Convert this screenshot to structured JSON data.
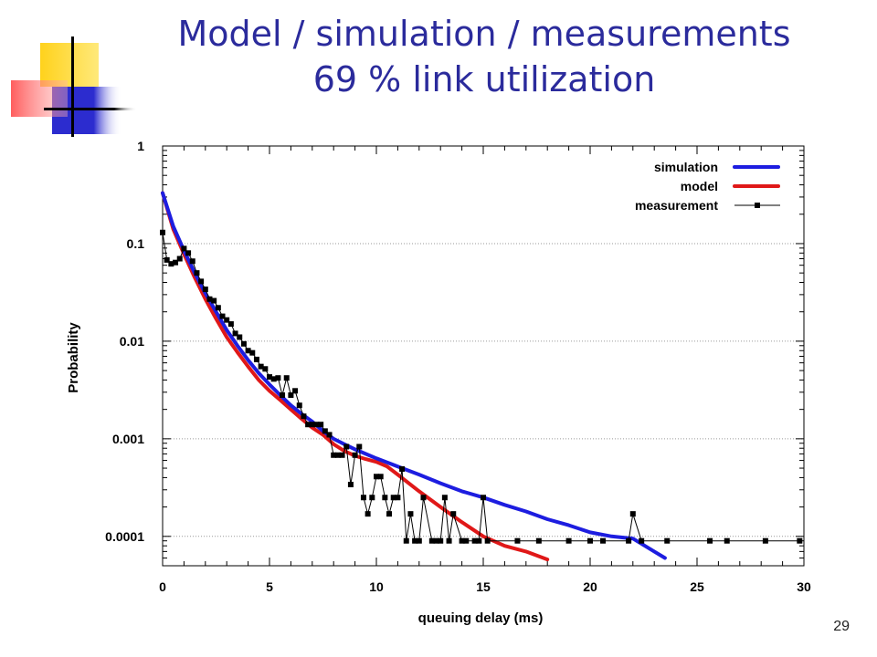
{
  "slide": {
    "title_line1": "Model / simulation / measurements",
    "title_line2": "69 % link utilization",
    "page_number": "29"
  },
  "colors": {
    "title": "#2b2b9c",
    "simulation": "#1d1de0",
    "model": "#e01818",
    "measurement": "#000000",
    "deco_yellow": "#ffd21c",
    "deco_blue": "#2c2ccf",
    "deco_red": "#ff4b4b"
  },
  "chart_data": {
    "type": "line",
    "title": "",
    "xlabel": "queuing delay (ms)",
    "ylabel": "Probability",
    "xlim": [
      0,
      30
    ],
    "ylim": [
      5e-05,
      1
    ],
    "yscale": "log",
    "x_ticks": [
      0,
      5,
      10,
      15,
      20,
      25,
      30
    ],
    "x_tick_labels": [
      "0",
      "5",
      "10",
      "15",
      "20",
      "25",
      "30"
    ],
    "y_ticks": [
      0.0001,
      0.001,
      0.01,
      0.1,
      1
    ],
    "y_tick_labels": [
      "0.0001",
      "0.001",
      "0.01",
      "0.1",
      "1"
    ],
    "grid": true,
    "legend_position": "top-right",
    "series": [
      {
        "name": "simulation",
        "style": "line",
        "x": [
          0,
          0.5,
          1,
          1.5,
          2,
          2.5,
          3,
          3.5,
          4,
          4.5,
          5,
          5.5,
          6,
          6.5,
          7,
          7.5,
          8,
          8.5,
          9,
          9.5,
          10,
          11,
          12,
          13,
          14,
          15,
          16,
          17,
          18,
          19,
          20,
          21,
          22,
          23,
          23.5
        ],
        "y": [
          0.33,
          0.15,
          0.085,
          0.05,
          0.031,
          0.02,
          0.013,
          0.009,
          0.0064,
          0.0047,
          0.0036,
          0.0028,
          0.0022,
          0.0018,
          0.0015,
          0.0012,
          0.001,
          0.00088,
          0.00078,
          0.0007,
          0.00063,
          0.00052,
          0.00043,
          0.00035,
          0.00029,
          0.00025,
          0.00021,
          0.00018,
          0.00015,
          0.00013,
          0.00011,
          0.0001,
          9.5e-05,
          7e-05,
          6e-05
        ]
      },
      {
        "name": "model",
        "style": "line",
        "x": [
          0,
          0.5,
          1,
          1.5,
          2,
          2.5,
          3,
          3.5,
          4,
          4.5,
          5,
          5.5,
          6,
          6.5,
          7,
          7.5,
          8,
          8.5,
          9,
          9.5,
          10,
          10.5,
          11,
          12,
          13,
          14,
          15,
          16,
          17,
          18
        ],
        "y": [
          0.33,
          0.14,
          0.078,
          0.045,
          0.027,
          0.017,
          0.011,
          0.0077,
          0.0055,
          0.004,
          0.0031,
          0.0025,
          0.002,
          0.0016,
          0.0013,
          0.0011,
          0.00088,
          0.00075,
          0.00067,
          0.00062,
          0.00058,
          0.00052,
          0.00043,
          0.00029,
          0.0002,
          0.00014,
          0.0001,
          8e-05,
          7e-05,
          5.8e-05
        ]
      },
      {
        "name": "measurement",
        "style": "line-markers",
        "x": [
          0,
          0.2,
          0.4,
          0.6,
          0.8,
          1.0,
          1.2,
          1.4,
          1.6,
          1.8,
          2.0,
          2.2,
          2.4,
          2.6,
          2.8,
          3.0,
          3.2,
          3.4,
          3.6,
          3.8,
          4.0,
          4.2,
          4.4,
          4.6,
          4.8,
          5.0,
          5.2,
          5.4,
          5.6,
          5.8,
          6.0,
          6.2,
          6.4,
          6.6,
          6.8,
          7.0,
          7.2,
          7.4,
          7.6,
          7.8,
          8.0,
          8.2,
          8.4,
          8.6,
          8.8,
          9.0,
          9.2,
          9.4,
          9.6,
          9.8,
          10.0,
          10.2,
          10.4,
          10.6,
          10.8,
          11.0,
          11.2,
          11.4,
          11.6,
          11.8,
          12.0,
          12.2,
          12.6,
          12.8,
          13.0,
          13.2,
          13.4,
          13.6,
          14.0,
          14.2,
          14.6,
          14.8,
          15.0,
          15.2,
          16.6,
          17.6,
          19.0,
          20.0,
          20.6,
          21.8,
          22.0,
          22.4,
          23.6,
          25.6,
          26.4,
          28.2,
          29.8
        ],
        "y": [
          0.13,
          0.068,
          0.062,
          0.064,
          0.07,
          0.089,
          0.08,
          0.066,
          0.05,
          0.041,
          0.034,
          0.027,
          0.026,
          0.022,
          0.018,
          0.0165,
          0.015,
          0.012,
          0.011,
          0.0094,
          0.008,
          0.0076,
          0.0065,
          0.0055,
          0.0052,
          0.0043,
          0.0041,
          0.0042,
          0.0028,
          0.0042,
          0.0028,
          0.0031,
          0.0022,
          0.0017,
          0.0014,
          0.0014,
          0.0014,
          0.0014,
          0.0012,
          0.0011,
          0.00068,
          0.00068,
          0.00068,
          0.00083,
          0.00034,
          0.00068,
          0.00083,
          0.00025,
          0.00017,
          0.00025,
          0.00041,
          0.00041,
          0.00025,
          0.00017,
          0.00025,
          0.00025,
          0.00049,
          9e-05,
          0.00017,
          9e-05,
          9e-05,
          0.00025,
          9e-05,
          9e-05,
          9e-05,
          0.00025,
          9e-05,
          0.00017,
          9e-05,
          9e-05,
          9e-05,
          9e-05,
          0.00025,
          9e-05,
          9e-05,
          9e-05,
          9e-05,
          9e-05,
          9e-05,
          9e-05,
          0.00017,
          9e-05,
          9e-05,
          9e-05,
          9e-05,
          9e-05,
          9e-05
        ]
      }
    ]
  }
}
